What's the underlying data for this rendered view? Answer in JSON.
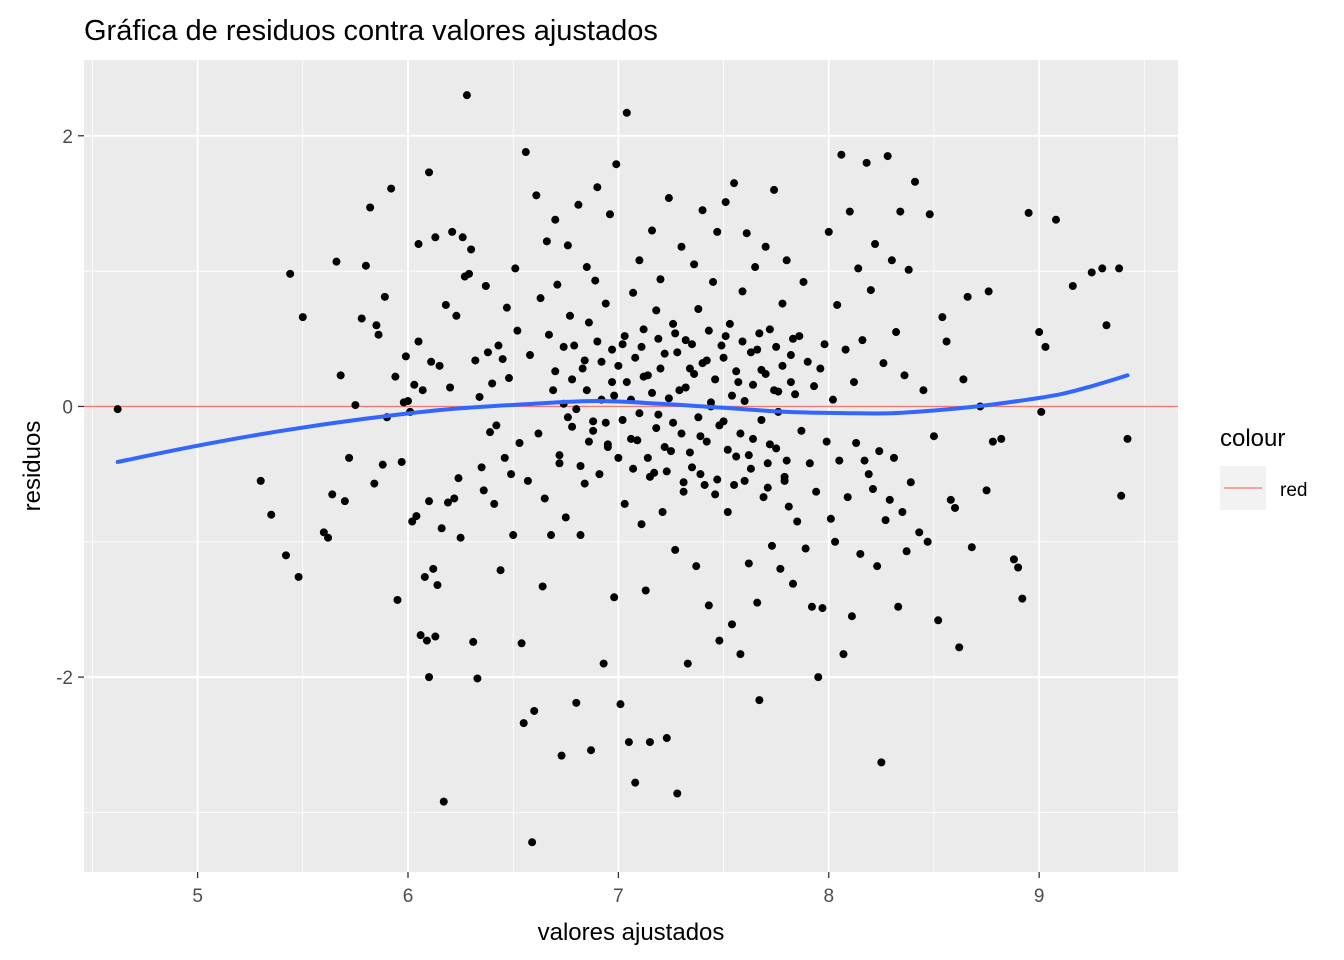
{
  "chart_data": {
    "type": "scatter",
    "title": "Gráfica de residuos contra valores ajustados",
    "xlabel": "valores ajustados",
    "ylabel": "residuos",
    "xlim": [
      4.46,
      9.66
    ],
    "ylim": [
      -3.44,
      2.56
    ],
    "x_ticks": [
      5,
      6,
      7,
      8,
      9
    ],
    "y_ticks": [
      -2,
      0,
      2
    ],
    "x_tick_labels": [
      "5",
      "6",
      "7",
      "8",
      "9"
    ],
    "y_tick_labels": [
      "-2",
      "0",
      "2"
    ],
    "grid": true,
    "background": "#ebebeb",
    "point_color": "#000000",
    "smooth_color": "#3366ff",
    "hline": {
      "y": 0,
      "color": "#f8766d"
    },
    "legend": {
      "title": "colour",
      "entries": [
        "red"
      ],
      "position": "right"
    },
    "points": [
      [
        4.62,
        -0.02
      ],
      [
        5.3,
        -0.55
      ],
      [
        5.35,
        -0.8
      ],
      [
        5.42,
        -1.1
      ],
      [
        5.44,
        0.98
      ],
      [
        5.48,
        -1.26
      ],
      [
        5.5,
        0.66
      ],
      [
        5.6,
        -0.93
      ],
      [
        5.62,
        -0.97
      ],
      [
        5.64,
        -0.65
      ],
      [
        5.66,
        1.07
      ],
      [
        5.68,
        0.23
      ],
      [
        5.7,
        -0.7
      ],
      [
        5.72,
        -0.38
      ],
      [
        5.75,
        0.01
      ],
      [
        5.78,
        0.65
      ],
      [
        5.8,
        1.04
      ],
      [
        5.82,
        1.47
      ],
      [
        5.84,
        -0.57
      ],
      [
        5.85,
        0.6
      ],
      [
        5.86,
        0.53
      ],
      [
        5.88,
        -0.43
      ],
      [
        5.89,
        0.81
      ],
      [
        5.9,
        -0.08
      ],
      [
        5.92,
        1.61
      ],
      [
        5.94,
        0.22
      ],
      [
        5.95,
        -1.43
      ],
      [
        5.97,
        -0.41
      ],
      [
        5.98,
        0.03
      ],
      [
        5.99,
        0.37
      ],
      [
        6.0,
        0.04
      ],
      [
        6.01,
        -0.04
      ],
      [
        6.02,
        -0.85
      ],
      [
        6.03,
        0.16
      ],
      [
        6.04,
        -0.81
      ],
      [
        6.05,
        0.48
      ],
      [
        6.05,
        1.2
      ],
      [
        6.06,
        -1.69
      ],
      [
        6.07,
        0.12
      ],
      [
        6.08,
        -1.26
      ],
      [
        6.09,
        -1.73
      ],
      [
        6.1,
        -0.7
      ],
      [
        6.1,
        -2.0
      ],
      [
        6.1,
        1.73
      ],
      [
        6.11,
        0.33
      ],
      [
        6.12,
        -1.2
      ],
      [
        6.13,
        1.25
      ],
      [
        6.13,
        -1.7
      ],
      [
        6.14,
        -1.32
      ],
      [
        6.15,
        0.3
      ],
      [
        6.16,
        -0.9
      ],
      [
        6.17,
        -2.92
      ],
      [
        6.18,
        0.75
      ],
      [
        6.19,
        -0.71
      ],
      [
        6.2,
        0.14
      ],
      [
        6.21,
        1.29
      ],
      [
        6.22,
        -0.68
      ],
      [
        6.23,
        0.67
      ],
      [
        6.24,
        -0.53
      ],
      [
        6.25,
        -0.97
      ],
      [
        6.26,
        1.25
      ],
      [
        6.27,
        0.96
      ],
      [
        6.28,
        2.3
      ],
      [
        6.29,
        0.98
      ],
      [
        6.3,
        1.16
      ],
      [
        6.31,
        -1.74
      ],
      [
        6.32,
        0.34
      ],
      [
        6.33,
        -2.01
      ],
      [
        6.34,
        0.07
      ],
      [
        6.35,
        -0.45
      ],
      [
        6.36,
        -0.62
      ],
      [
        6.37,
        0.89
      ],
      [
        6.38,
        0.4
      ],
      [
        6.39,
        -0.19
      ],
      [
        6.4,
        0.17
      ],
      [
        6.41,
        -0.72
      ],
      [
        6.42,
        -0.14
      ],
      [
        6.43,
        0.45
      ],
      [
        6.44,
        -1.21
      ],
      [
        6.45,
        0.35
      ],
      [
        6.46,
        -0.38
      ],
      [
        6.47,
        0.73
      ],
      [
        6.48,
        0.21
      ],
      [
        6.49,
        -0.5
      ],
      [
        6.5,
        -0.95
      ],
      [
        6.51,
        1.02
      ],
      [
        6.52,
        0.56
      ],
      [
        6.53,
        -0.27
      ],
      [
        6.54,
        -1.75
      ],
      [
        6.55,
        -2.34
      ],
      [
        6.56,
        1.88
      ],
      [
        6.57,
        -0.55
      ],
      [
        6.58,
        0.38
      ],
      [
        6.59,
        -3.22
      ],
      [
        6.6,
        -2.25
      ],
      [
        6.61,
        1.56
      ],
      [
        6.62,
        -0.2
      ],
      [
        6.63,
        0.8
      ],
      [
        6.64,
        -1.33
      ],
      [
        6.65,
        -0.68
      ],
      [
        6.66,
        1.22
      ],
      [
        6.67,
        0.53
      ],
      [
        6.68,
        -0.95
      ],
      [
        6.69,
        0.12
      ],
      [
        6.7,
        1.38
      ],
      [
        6.71,
        0.9
      ],
      [
        6.72,
        -0.42
      ],
      [
        6.73,
        -2.58
      ],
      [
        6.74,
        0.02
      ],
      [
        6.75,
        -0.82
      ],
      [
        6.76,
        1.19
      ],
      [
        6.77,
        0.67
      ],
      [
        6.78,
        -0.15
      ],
      [
        6.79,
        0.45
      ],
      [
        6.8,
        -2.19
      ],
      [
        6.81,
        1.49
      ],
      [
        6.82,
        -0.95
      ],
      [
        6.83,
        0.28
      ],
      [
        6.84,
        -0.57
      ],
      [
        6.85,
        1.03
      ],
      [
        6.86,
        0.62
      ],
      [
        6.87,
        -2.54
      ],
      [
        6.88,
        -0.11
      ],
      [
        6.89,
        0.93
      ],
      [
        6.9,
        1.62
      ],
      [
        6.91,
        -0.5
      ],
      [
        6.92,
        0.33
      ],
      [
        6.93,
        -1.9
      ],
      [
        6.94,
        0.76
      ],
      [
        6.95,
        -0.28
      ],
      [
        6.96,
        1.42
      ],
      [
        6.97,
        0.18
      ],
      [
        6.98,
        -1.41
      ],
      [
        6.99,
        1.79
      ],
      [
        7.0,
        -0.38
      ],
      [
        7.01,
        -2.2
      ],
      [
        7.02,
        0.46
      ],
      [
        7.03,
        -0.72
      ],
      [
        7.04,
        2.17
      ],
      [
        7.05,
        -2.48
      ],
      [
        7.06,
        0.05
      ],
      [
        7.07,
        0.84
      ],
      [
        7.08,
        -2.78
      ],
      [
        7.09,
        -0.25
      ],
      [
        7.1,
        1.08
      ],
      [
        7.11,
        -0.87
      ],
      [
        7.12,
        0.57
      ],
      [
        7.13,
        -1.36
      ],
      [
        7.14,
        0.23
      ],
      [
        7.15,
        -2.48
      ],
      [
        7.16,
        1.3
      ],
      [
        7.17,
        -0.49
      ],
      [
        7.18,
        0.71
      ],
      [
        7.19,
        -0.06
      ],
      [
        7.2,
        0.94
      ],
      [
        7.21,
        -0.78
      ],
      [
        7.22,
        0.39
      ],
      [
        7.23,
        -2.45
      ],
      [
        7.24,
        1.54
      ],
      [
        7.25,
        -0.33
      ],
      [
        7.26,
        0.61
      ],
      [
        7.27,
        -1.06
      ],
      [
        7.28,
        -2.86
      ],
      [
        7.29,
        0.12
      ],
      [
        7.3,
        1.18
      ],
      [
        7.31,
        -0.63
      ],
      [
        7.32,
        0.49
      ],
      [
        7.33,
        -1.9
      ],
      [
        7.34,
        0.28
      ],
      [
        7.35,
        -0.45
      ],
      [
        7.36,
        1.05
      ],
      [
        7.37,
        -1.18
      ],
      [
        7.38,
        0.72
      ],
      [
        7.39,
        -0.22
      ],
      [
        7.4,
        1.45
      ],
      [
        7.41,
        -0.58
      ],
      [
        7.42,
        0.34
      ],
      [
        7.43,
        -1.47
      ],
      [
        7.44,
        0.03
      ],
      [
        7.45,
        0.92
      ],
      [
        7.46,
        -0.65
      ],
      [
        7.47,
        1.29
      ],
      [
        7.48,
        -1.73
      ],
      [
        7.49,
        0.45
      ],
      [
        7.5,
        -0.11
      ],
      [
        7.51,
        1.51
      ],
      [
        7.52,
        -0.78
      ],
      [
        7.53,
        0.61
      ],
      [
        7.54,
        -1.61
      ],
      [
        7.55,
        1.65
      ],
      [
        7.56,
        -0.37
      ],
      [
        7.57,
        0.18
      ],
      [
        7.58,
        -1.83
      ],
      [
        7.59,
        0.85
      ],
      [
        7.6,
        -0.55
      ],
      [
        7.61,
        1.28
      ],
      [
        7.62,
        -1.16
      ],
      [
        7.63,
        0.4
      ],
      [
        7.64,
        -0.24
      ],
      [
        7.65,
        1.03
      ],
      [
        7.66,
        -1.45
      ],
      [
        7.67,
        -2.17
      ],
      [
        7.68,
        0.27
      ],
      [
        7.69,
        -0.67
      ],
      [
        7.7,
        1.18
      ],
      [
        7.71,
        -0.42
      ],
      [
        7.72,
        0.57
      ],
      [
        7.73,
        -1.03
      ],
      [
        7.74,
        1.6
      ],
      [
        7.75,
        -0.31
      ],
      [
        7.76,
        0.11
      ],
      [
        7.77,
        -1.2
      ],
      [
        7.78,
        0.76
      ],
      [
        7.79,
        -0.55
      ],
      [
        7.8,
        1.08
      ],
      [
        7.81,
        -0.74
      ],
      [
        7.82,
        0.38
      ],
      [
        7.83,
        -1.31
      ],
      [
        7.84,
        0.09
      ],
      [
        7.85,
        -0.85
      ],
      [
        7.86,
        0.52
      ],
      [
        7.87,
        -0.18
      ],
      [
        7.88,
        0.92
      ],
      [
        7.89,
        -1.05
      ],
      [
        7.9,
        0.33
      ],
      [
        7.91,
        -0.42
      ],
      [
        7.92,
        -1.48
      ],
      [
        7.93,
        0.15
      ],
      [
        7.94,
        -0.63
      ],
      [
        7.95,
        -2.0
      ],
      [
        7.96,
        0.28
      ],
      [
        7.97,
        -1.49
      ],
      [
        7.98,
        0.46
      ],
      [
        7.99,
        -0.26
      ],
      [
        8.0,
        1.29
      ],
      [
        8.01,
        -0.83
      ],
      [
        8.02,
        0.05
      ],
      [
        8.03,
        -1.0
      ],
      [
        8.04,
        0.75
      ],
      [
        8.05,
        -0.4
      ],
      [
        8.06,
        1.86
      ],
      [
        8.07,
        -1.83
      ],
      [
        8.08,
        0.42
      ],
      [
        8.09,
        -0.67
      ],
      [
        8.1,
        1.44
      ],
      [
        8.11,
        -1.55
      ],
      [
        8.12,
        0.18
      ],
      [
        8.13,
        -0.27
      ],
      [
        8.14,
        1.02
      ],
      [
        8.15,
        -1.09
      ],
      [
        8.16,
        0.49
      ],
      [
        8.17,
        -0.4
      ],
      [
        8.18,
        1.8
      ],
      [
        8.19,
        -0.5
      ],
      [
        8.2,
        0.86
      ],
      [
        8.21,
        -0.61
      ],
      [
        8.22,
        1.2
      ],
      [
        8.23,
        -1.18
      ],
      [
        8.24,
        -0.33
      ],
      [
        8.25,
        -2.63
      ],
      [
        8.26,
        0.32
      ],
      [
        8.27,
        -0.84
      ],
      [
        8.28,
        1.85
      ],
      [
        8.29,
        -0.69
      ],
      [
        8.3,
        1.08
      ],
      [
        8.31,
        -0.38
      ],
      [
        8.32,
        0.55
      ],
      [
        8.33,
        -1.48
      ],
      [
        8.34,
        1.44
      ],
      [
        8.35,
        -0.78
      ],
      [
        8.36,
        0.23
      ],
      [
        8.37,
        -1.07
      ],
      [
        8.38,
        1.01
      ],
      [
        8.39,
        -0.56
      ],
      [
        8.41,
        1.66
      ],
      [
        8.43,
        -0.93
      ],
      [
        8.45,
        0.12
      ],
      [
        8.47,
        -1.0
      ],
      [
        8.48,
        1.42
      ],
      [
        8.5,
        -0.22
      ],
      [
        8.52,
        -1.58
      ],
      [
        8.54,
        0.66
      ],
      [
        8.56,
        0.48
      ],
      [
        8.58,
        -0.69
      ],
      [
        8.6,
        -0.75
      ],
      [
        8.62,
        -1.78
      ],
      [
        8.64,
        0.2
      ],
      [
        8.66,
        0.81
      ],
      [
        8.68,
        -1.04
      ],
      [
        8.72,
        0.0
      ],
      [
        8.75,
        -0.62
      ],
      [
        8.76,
        0.85
      ],
      [
        8.78,
        -0.26
      ],
      [
        8.82,
        -0.24
      ],
      [
        8.88,
        -1.13
      ],
      [
        8.9,
        -1.19
      ],
      [
        8.92,
        -1.42
      ],
      [
        8.95,
        1.43
      ],
      [
        9.0,
        0.55
      ],
      [
        9.01,
        -0.04
      ],
      [
        9.03,
        0.44
      ],
      [
        9.08,
        1.38
      ],
      [
        9.16,
        0.89
      ],
      [
        9.25,
        0.99
      ],
      [
        9.3,
        1.02
      ],
      [
        9.32,
        0.6
      ],
      [
        9.38,
        1.02
      ],
      [
        9.39,
        -0.66
      ],
      [
        9.42,
        -0.24
      ],
      [
        6.8,
        -0.02
      ],
      [
        6.85,
        0.12
      ],
      [
        6.88,
        -0.18
      ],
      [
        6.92,
        0.05
      ],
      [
        6.95,
        -0.3
      ],
      [
        6.97,
        0.42
      ],
      [
        7.0,
        0.3
      ],
      [
        7.02,
        -0.1
      ],
      [
        7.04,
        0.18
      ],
      [
        7.06,
        -0.24
      ],
      [
        7.08,
        0.36
      ],
      [
        7.1,
        -0.05
      ],
      [
        7.12,
        0.22
      ],
      [
        7.14,
        -0.38
      ],
      [
        7.16,
        0.1
      ],
      [
        7.18,
        -0.16
      ],
      [
        7.2,
        0.28
      ],
      [
        7.22,
        -0.3
      ],
      [
        7.24,
        0.06
      ],
      [
        7.26,
        -0.12
      ],
      [
        7.28,
        0.4
      ],
      [
        7.3,
        -0.2
      ],
      [
        7.32,
        0.14
      ],
      [
        7.34,
        -0.34
      ],
      [
        7.36,
        0.24
      ],
      [
        7.38,
        -0.08
      ],
      [
        7.4,
        0.32
      ],
      [
        7.42,
        -0.26
      ],
      [
        7.44,
        0.0
      ],
      [
        7.46,
        0.2
      ],
      [
        7.48,
        -0.14
      ],
      [
        7.5,
        0.36
      ],
      [
        7.52,
        -0.32
      ],
      [
        7.54,
        0.08
      ],
      [
        7.56,
        0.26
      ],
      [
        7.58,
        -0.2
      ],
      [
        7.6,
        0.04
      ],
      [
        7.62,
        -0.36
      ],
      [
        7.64,
        0.16
      ],
      [
        7.66,
        0.42
      ],
      [
        7.68,
        -0.1
      ],
      [
        7.7,
        0.24
      ],
      [
        7.72,
        -0.28
      ],
      [
        7.74,
        0.12
      ],
      [
        7.76,
        -0.04
      ],
      [
        7.78,
        0.3
      ],
      [
        7.8,
        -0.4
      ],
      [
        7.82,
        0.18
      ],
      [
        6.7,
        0.26
      ],
      [
        6.72,
        -0.36
      ],
      [
        6.74,
        0.44
      ],
      [
        6.76,
        -0.08
      ],
      [
        6.78,
        0.2
      ],
      [
        6.82,
        -0.44
      ],
      [
        6.84,
        0.34
      ],
      [
        6.86,
        -0.26
      ],
      [
        6.9,
        0.48
      ],
      [
        6.94,
        -0.12
      ],
      [
        6.98,
        0.08
      ],
      [
        7.03,
        0.52
      ],
      [
        7.07,
        -0.46
      ],
      [
        7.11,
        0.44
      ],
      [
        7.15,
        -0.52
      ],
      [
        7.19,
        0.5
      ],
      [
        7.23,
        -0.48
      ],
      [
        7.27,
        0.54
      ],
      [
        7.31,
        -0.56
      ],
      [
        7.35,
        0.46
      ],
      [
        7.39,
        -0.5
      ],
      [
        7.43,
        0.56
      ],
      [
        7.47,
        -0.54
      ],
      [
        7.51,
        0.52
      ],
      [
        7.55,
        -0.58
      ],
      [
        7.59,
        0.48
      ],
      [
        7.63,
        -0.46
      ],
      [
        7.67,
        0.54
      ],
      [
        7.71,
        -0.6
      ],
      [
        7.75,
        0.44
      ],
      [
        7.79,
        -0.52
      ],
      [
        7.83,
        0.5
      ]
    ],
    "smooth": [
      [
        4.62,
        -0.41
      ],
      [
        5.0,
        -0.29
      ],
      [
        5.4,
        -0.18
      ],
      [
        5.8,
        -0.09
      ],
      [
        6.2,
        -0.02
      ],
      [
        6.6,
        0.02
      ],
      [
        6.9,
        0.04
      ],
      [
        7.2,
        0.02
      ],
      [
        7.5,
        -0.01
      ],
      [
        7.8,
        -0.04
      ],
      [
        8.1,
        -0.05
      ],
      [
        8.3,
        -0.05
      ],
      [
        8.5,
        -0.03
      ],
      [
        8.7,
        0.0
      ],
      [
        8.9,
        0.04
      ],
      [
        9.1,
        0.09
      ],
      [
        9.25,
        0.15
      ],
      [
        9.42,
        0.23
      ]
    ]
  }
}
